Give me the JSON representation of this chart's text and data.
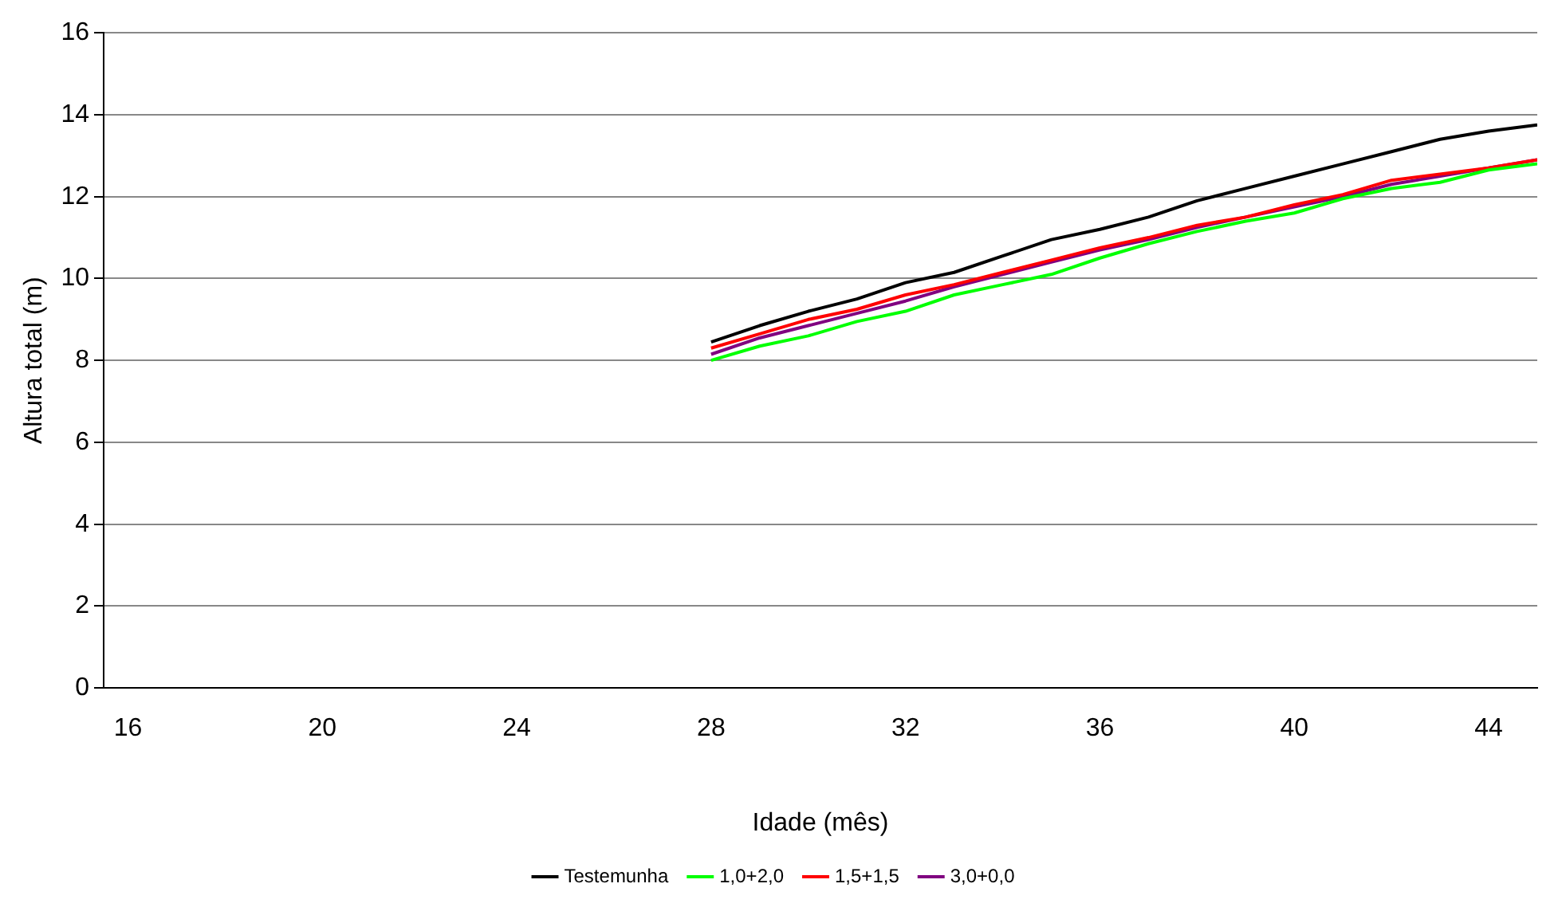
{
  "chart_data": {
    "type": "line",
    "xlabel": "Idade (mês)",
    "ylabel": "Altura total (m)",
    "x": [
      28,
      29,
      30,
      31,
      32,
      33,
      34,
      35,
      36,
      37,
      38,
      39,
      40,
      41,
      42,
      43,
      44,
      45
    ],
    "series": [
      {
        "name": "Testemunha",
        "color": "#000000",
        "values": [
          8.45,
          8.85,
          9.2,
          9.5,
          9.9,
          10.15,
          10.55,
          10.95,
          11.2,
          11.5,
          11.9,
          12.2,
          12.5,
          12.8,
          13.1,
          13.4,
          13.6,
          13.75
        ]
      },
      {
        "name": "1,0+2,0",
        "color": "#00ff00",
        "values": [
          8.0,
          8.35,
          8.6,
          8.95,
          9.2,
          9.6,
          9.85,
          10.1,
          10.5,
          10.85,
          11.15,
          11.4,
          11.6,
          11.95,
          12.2,
          12.35,
          12.65,
          12.8
        ]
      },
      {
        "name": "1,5+1,5",
        "color": "#ff0000",
        "values": [
          8.3,
          8.65,
          9.0,
          9.25,
          9.6,
          9.85,
          10.15,
          10.45,
          10.75,
          11.0,
          11.3,
          11.5,
          11.8,
          12.05,
          12.4,
          12.55,
          12.7,
          12.9
        ]
      },
      {
        "name": "3,0+0,0",
        "color": "#800080",
        "values": [
          8.15,
          8.55,
          8.85,
          9.15,
          9.45,
          9.8,
          10.1,
          10.4,
          10.7,
          10.95,
          11.25,
          11.5,
          11.75,
          12.0,
          12.3,
          12.5,
          12.7,
          12.9
        ]
      }
    ],
    "xlim": [
      15.5,
      45
    ],
    "xticks": [
      16,
      20,
      24,
      28,
      32,
      36,
      40,
      44
    ],
    "ylim": [
      0,
      16
    ],
    "yticks": [
      0,
      2,
      4,
      6,
      8,
      10,
      12,
      14,
      16
    ],
    "grid": "y",
    "legend": "bottom",
    "marker": "none",
    "line_style": "solid"
  }
}
